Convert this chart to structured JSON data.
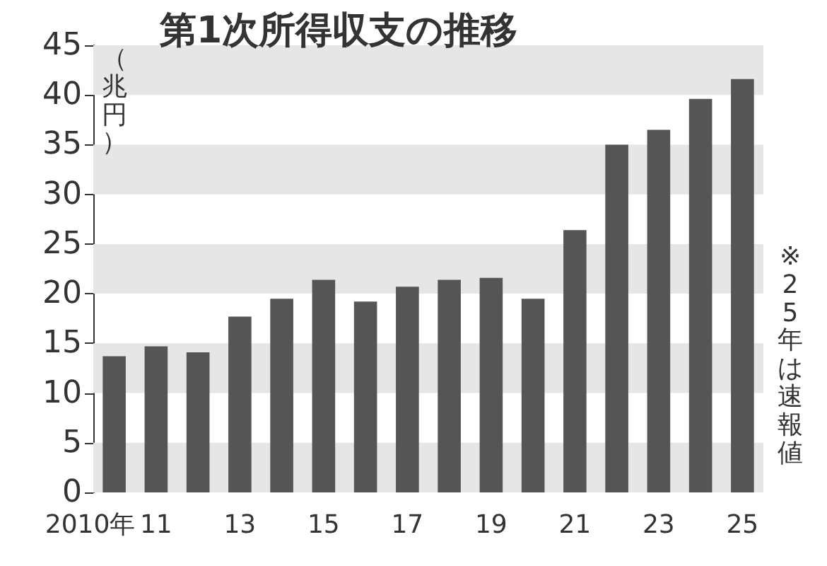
{
  "chart_data": {
    "type": "bar",
    "title": "第1次所得収支の推移",
    "ylabel": "（兆円）",
    "categories": [
      "2010年",
      "11",
      null,
      "13",
      null,
      "15",
      null,
      "17",
      null,
      "19",
      null,
      "21",
      null,
      "23",
      null,
      "25"
    ],
    "values": [
      13.7,
      14.7,
      14.1,
      17.7,
      19.5,
      21.4,
      19.2,
      20.7,
      21.4,
      21.6,
      19.5,
      26.4,
      35.0,
      36.5,
      39.6,
      41.6
    ],
    "color": "#555555",
    "ylim": [
      0,
      45
    ],
    "yticks": [
      0,
      5,
      10,
      15,
      20,
      25,
      30,
      35,
      40,
      45
    ],
    "grid": false,
    "bands": [
      {
        "axis": "y",
        "from": 0,
        "to": 5,
        "color": "#e6e6e6"
      },
      {
        "axis": "y",
        "from": 10,
        "to": 15,
        "color": "#e6e6e6"
      },
      {
        "axis": "y",
        "from": 20,
        "to": 25,
        "color": "#e6e6e6"
      },
      {
        "axis": "y",
        "from": 30,
        "to": 35,
        "color": "#e6e6e6"
      },
      {
        "axis": "y",
        "from": 40,
        "to": 45,
        "color": "#e6e6e6"
      }
    ],
    "annotations": [
      "※25年は速報値"
    ]
  }
}
